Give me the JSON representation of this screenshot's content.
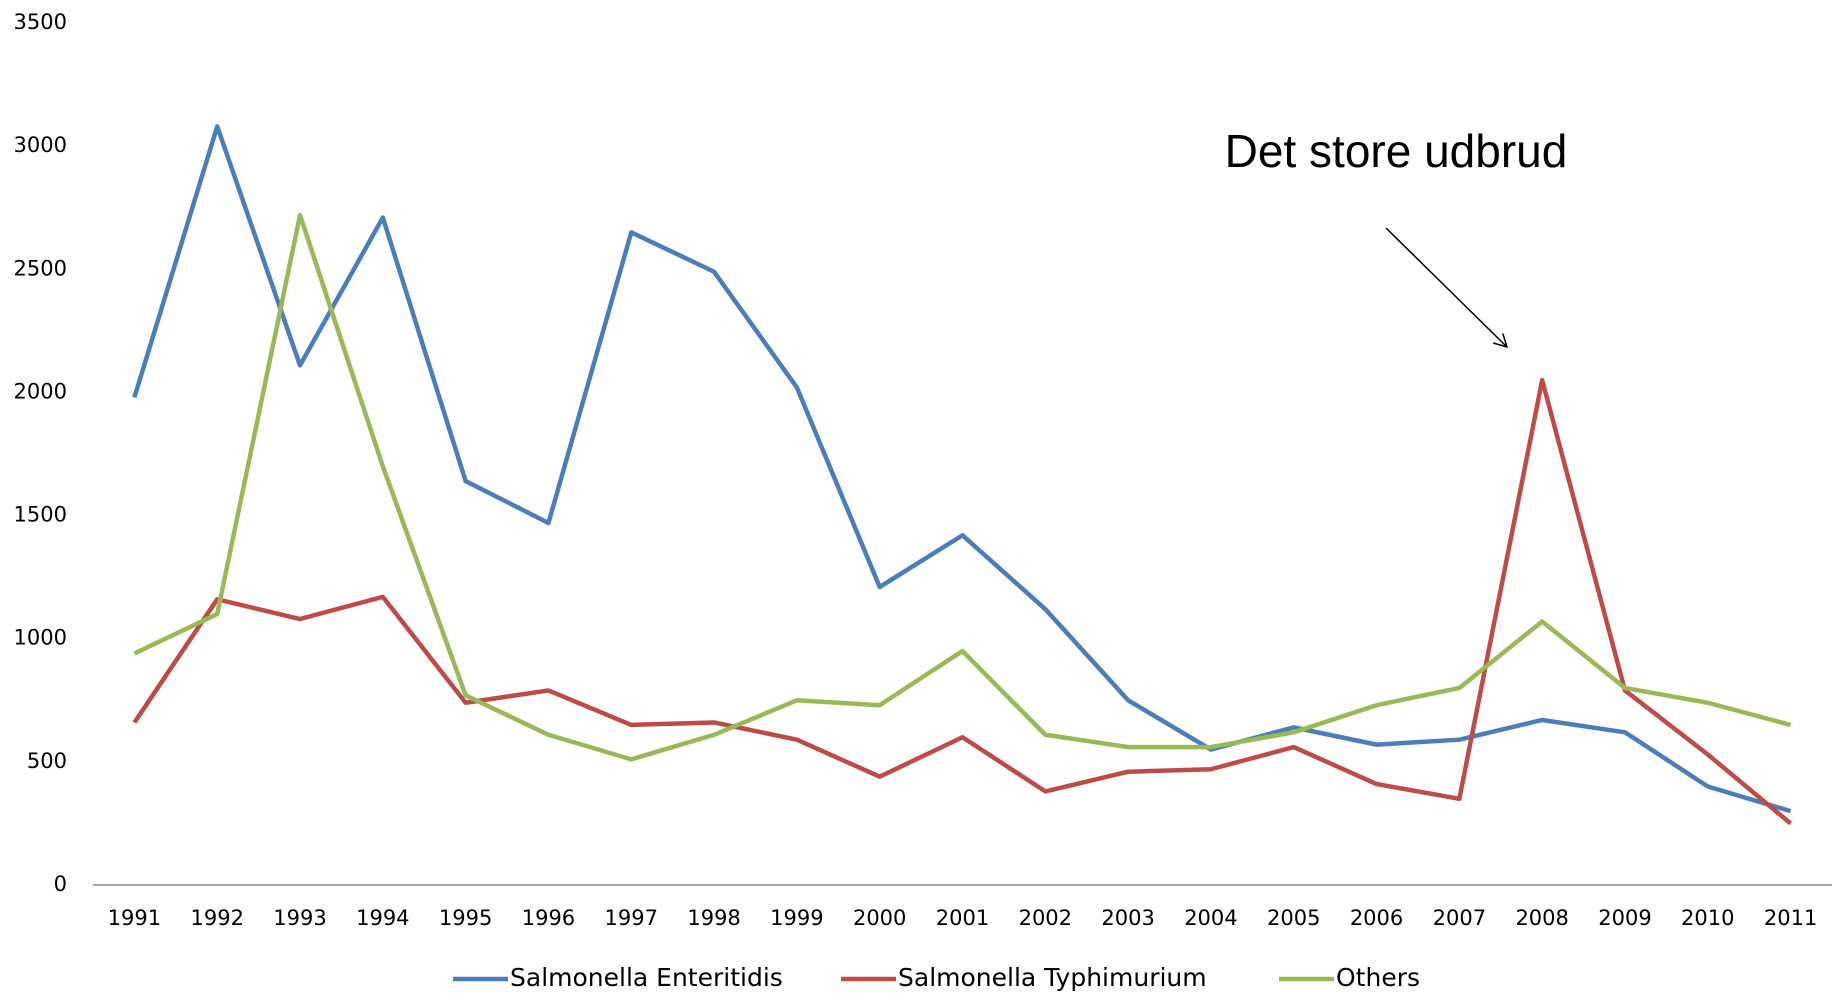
{
  "chart_data": {
    "type": "line",
    "categories": [
      "1991",
      "1992",
      "1993",
      "1994",
      "1995",
      "1996",
      "1997",
      "1998",
      "1999",
      "2000",
      "2001",
      "2002",
      "2003",
      "2004",
      "2005",
      "2006",
      "2007",
      "2008",
      "2009",
      "2010",
      "2011"
    ],
    "series": [
      {
        "name": "Salmonella Enteritidis",
        "color": "#4a7ebb",
        "values": [
          1980,
          3080,
          2110,
          2710,
          1640,
          1470,
          2650,
          2490,
          2020,
          1210,
          1420,
          1120,
          750,
          550,
          640,
          570,
          590,
          670,
          620,
          400,
          300
        ]
      },
      {
        "name": "Salmonella Typhimurium",
        "color": "#be4b48",
        "values": [
          660,
          1160,
          1080,
          1170,
          740,
          790,
          650,
          660,
          590,
          440,
          600,
          380,
          460,
          470,
          560,
          410,
          350,
          2050,
          790,
          530,
          250
        ]
      },
      {
        "name": "Others",
        "color": "#98b954",
        "values": [
          940,
          1100,
          2720,
          1700,
          770,
          610,
          510,
          610,
          750,
          730,
          950,
          610,
          560,
          560,
          620,
          730,
          800,
          1070,
          800,
          740,
          650
        ]
      }
    ],
    "ylim": [
      0,
      3500
    ],
    "yticks": [
      0,
      500,
      1000,
      1500,
      2000,
      2500,
      3000,
      3500
    ],
    "grid": false,
    "annotation": "Det store udbrud"
  }
}
